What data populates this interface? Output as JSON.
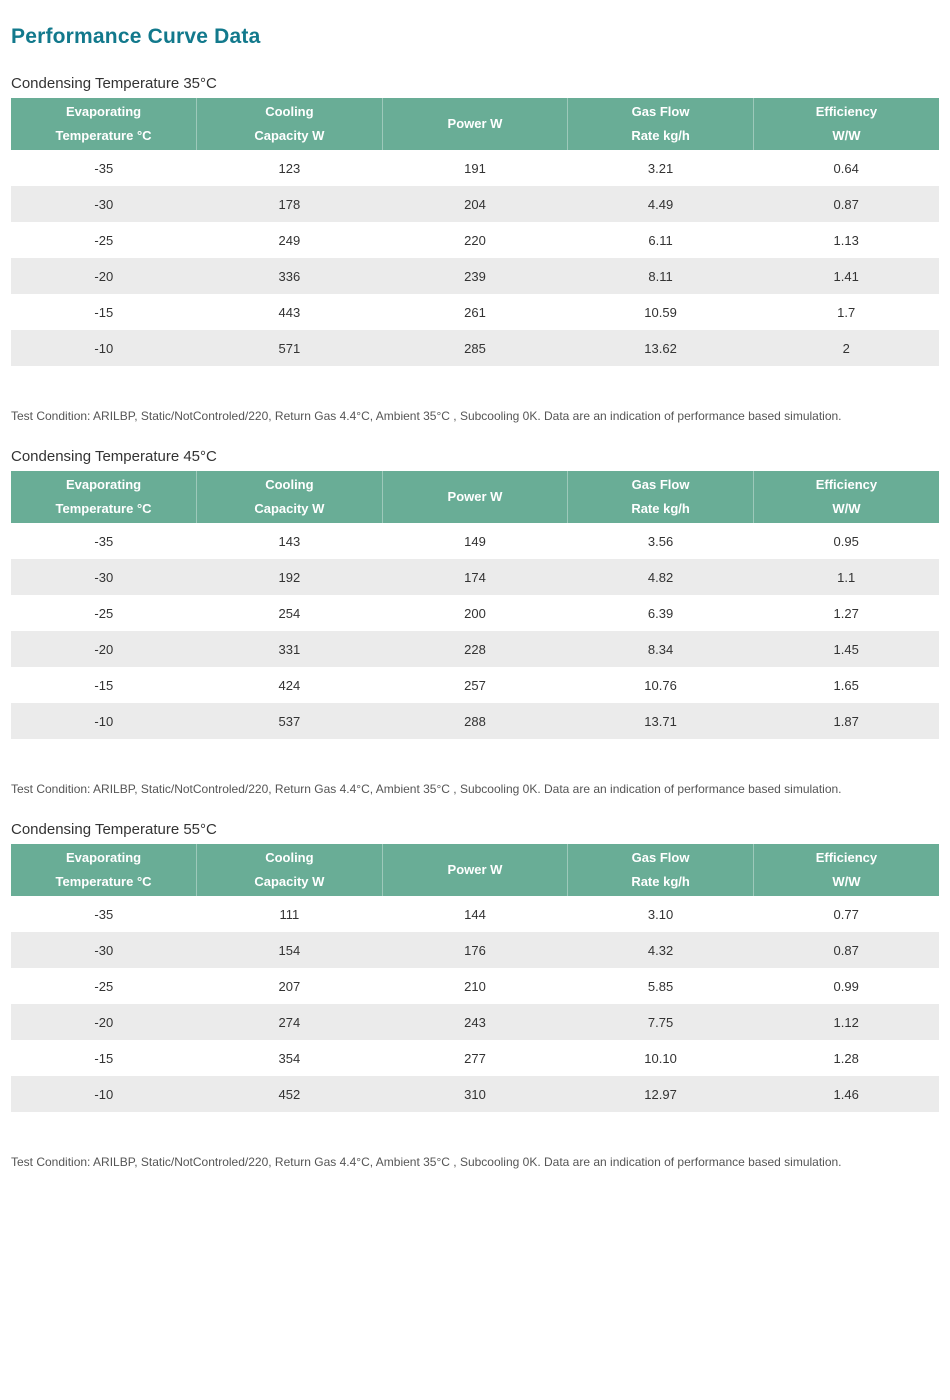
{
  "page": {
    "title": "Performance Curve Data",
    "colors": {
      "accent": "#12798c",
      "table_header_bg": "#69ad96",
      "table_header_text": "#ffffff",
      "row_stripe": "#ebebeb",
      "body_text": "#333333",
      "note_text": "#555555"
    }
  },
  "table_headers": {
    "evaporating_line1": "Evaporating",
    "evaporating_line2": "Temperature °C",
    "cooling_line1": "Cooling",
    "cooling_line2": "Capacity W",
    "power": "Power W",
    "gasflow_line1": "Gas Flow",
    "gasflow_line2": "Rate kg/h",
    "efficiency_line1": "Efficiency",
    "efficiency_line2": "W/W"
  },
  "sections": [
    {
      "heading": "Condensing Temperature 35°C",
      "note": "Test Condition: ARILBP, Static/NotControled/220, Return Gas 4.4°C, Ambient 35°C , Subcooling 0K. Data are an indication of performance based simulation.",
      "rows": [
        [
          "-35",
          "123",
          "191",
          "3.21",
          "0.64"
        ],
        [
          "-30",
          "178",
          "204",
          "4.49",
          "0.87"
        ],
        [
          "-25",
          "249",
          "220",
          "6.11",
          "1.13"
        ],
        [
          "-20",
          "336",
          "239",
          "8.11",
          "1.41"
        ],
        [
          "-15",
          "443",
          "261",
          "10.59",
          "1.7"
        ],
        [
          "-10",
          "571",
          "285",
          "13.62",
          "2"
        ]
      ]
    },
    {
      "heading": "Condensing Temperature 45°C",
      "note": "Test Condition: ARILBP, Static/NotControled/220, Return Gas 4.4°C, Ambient 35°C , Subcooling 0K. Data are an indication of performance based simulation.",
      "rows": [
        [
          "-35",
          "143",
          "149",
          "3.56",
          "0.95"
        ],
        [
          "-30",
          "192",
          "174",
          "4.82",
          "1.1"
        ],
        [
          "-25",
          "254",
          "200",
          "6.39",
          "1.27"
        ],
        [
          "-20",
          "331",
          "228",
          "8.34",
          "1.45"
        ],
        [
          "-15",
          "424",
          "257",
          "10.76",
          "1.65"
        ],
        [
          "-10",
          "537",
          "288",
          "13.71",
          "1.87"
        ]
      ]
    },
    {
      "heading": "Condensing Temperature 55°C",
      "note": "Test Condition: ARILBP, Static/NotControled/220, Return Gas 4.4°C, Ambient 35°C , Subcooling 0K. Data are an indication of performance based simulation.",
      "rows": [
        [
          "-35",
          "111",
          "144",
          "3.10",
          "0.77"
        ],
        [
          "-30",
          "154",
          "176",
          "4.32",
          "0.87"
        ],
        [
          "-25",
          "207",
          "210",
          "5.85",
          "0.99"
        ],
        [
          "-20",
          "274",
          "243",
          "7.75",
          "1.12"
        ],
        [
          "-15",
          "354",
          "277",
          "10.10",
          "1.28"
        ],
        [
          "-10",
          "452",
          "310",
          "12.97",
          "1.46"
        ]
      ]
    }
  ]
}
